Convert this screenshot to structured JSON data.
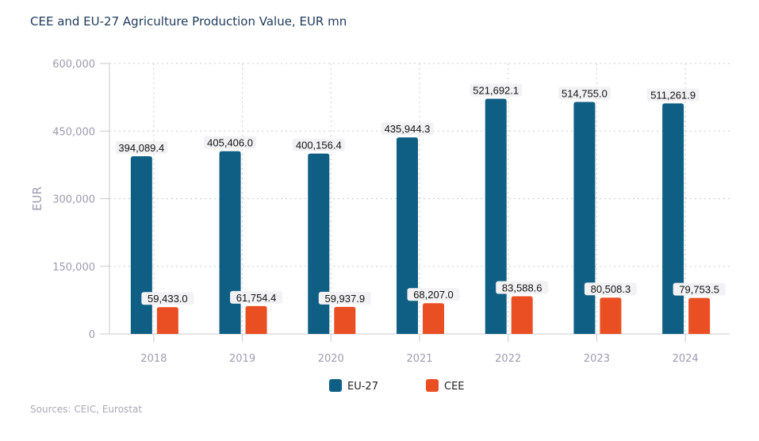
{
  "chart_data": {
    "type": "bar",
    "title": "CEE and EU-27 Agriculture Production Value, EUR mn",
    "ylabel": "EUR",
    "xlabel": "",
    "ylim": [
      0,
      600000
    ],
    "yticks": [
      0,
      150000,
      300000,
      450000,
      600000
    ],
    "ytick_labels": [
      "0",
      "150,000",
      "300,000",
      "450,000",
      "600,000"
    ],
    "grid": true,
    "legend": "bottom",
    "categories": [
      "2018",
      "2019",
      "2020",
      "2021",
      "2022",
      "2023",
      "2024"
    ],
    "series": [
      {
        "name": "EU-27",
        "color": "#0f5f84",
        "values": [
          394089.4,
          405406.0,
          400156.4,
          435944.3,
          521692.1,
          514755.0,
          511261.9
        ],
        "labels": [
          "394,089.4",
          "405,406.0",
          "400,156.4",
          "435,944.3",
          "521,692.1",
          "514,755.0",
          "511,261.9"
        ]
      },
      {
        "name": "CEE",
        "color": "#ea4f24",
        "values": [
          59433.0,
          61754.4,
          59937.9,
          68207.0,
          83588.6,
          80508.3,
          79753.5
        ],
        "labels": [
          "59,433.0",
          "61,754.4",
          "59,937.9",
          "68,207.0",
          "83,588.6",
          "80,508.3",
          "79,753.5"
        ]
      }
    ]
  },
  "source": "Sources: CEIC, Eurostat"
}
